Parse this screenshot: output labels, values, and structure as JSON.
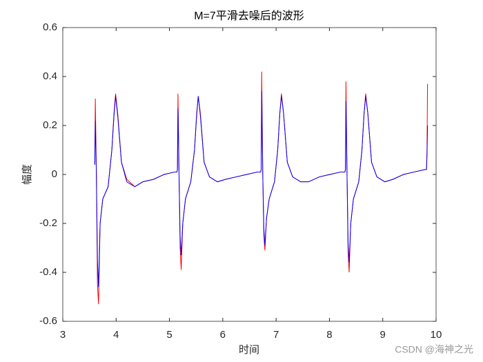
{
  "chart_data": {
    "type": "line",
    "title": "M=7平滑去噪后的波形",
    "x_label": "时间",
    "y_label": "幅度",
    "x": [
      3.6,
      3.61,
      3.63,
      3.65,
      3.67,
      3.7,
      3.75,
      3.85,
      3.92,
      3.96,
      3.99,
      4.03,
      4.1,
      4.2,
      4.35,
      4.5,
      4.7,
      4.9,
      5.1,
      5.14,
      5.15,
      5.16,
      5.18,
      5.2,
      5.22,
      5.25,
      5.3,
      5.4,
      5.47,
      5.51,
      5.54,
      5.58,
      5.65,
      5.75,
      5.9,
      6.05,
      6.25,
      6.45,
      6.65,
      6.71,
      6.72,
      6.73,
      6.75,
      6.77,
      6.79,
      6.82,
      6.87,
      6.97,
      7.03,
      7.07,
      7.1,
      7.14,
      7.21,
      7.31,
      7.46,
      7.61,
      7.81,
      8.01,
      8.21,
      8.29,
      8.3,
      8.31,
      8.33,
      8.35,
      8.37,
      8.4,
      8.45,
      8.55,
      8.61,
      8.65,
      8.68,
      8.72,
      8.79,
      8.89,
      9.04,
      9.19,
      9.39,
      9.59,
      9.79,
      9.82,
      9.83,
      9.84
    ],
    "series": [
      {
        "color": "#ff0000",
        "values": [
          0.04,
          0.31,
          0.0,
          -0.45,
          -0.53,
          -0.2,
          -0.1,
          -0.05,
          0.1,
          0.25,
          0.33,
          0.25,
          0.05,
          -0.02,
          -0.05,
          -0.03,
          -0.02,
          0,
          0.01,
          0.01,
          0.02,
          0.33,
          0.0,
          -0.3,
          -0.39,
          -0.2,
          -0.1,
          -0.03,
          0.1,
          0.25,
          0.32,
          0.25,
          0.05,
          -0.01,
          -0.03,
          -0.02,
          -0.01,
          0,
          0.01,
          0.01,
          0.02,
          0.42,
          0.0,
          -0.25,
          -0.31,
          -0.18,
          -0.1,
          -0.03,
          0.1,
          0.25,
          0.33,
          0.25,
          0.05,
          -0.01,
          -0.03,
          -0.03,
          -0.01,
          0,
          0.01,
          0.01,
          0.02,
          0.38,
          0.0,
          -0.32,
          -0.4,
          -0.2,
          -0.1,
          -0.03,
          0.1,
          0.25,
          0.33,
          0.25,
          0.05,
          -0.01,
          -0.03,
          -0.02,
          0,
          0.01,
          0.02,
          0.02,
          0.1,
          0.37
        ]
      },
      {
        "color": "#0000ff",
        "values": [
          0.04,
          0.22,
          0.0,
          -0.35,
          -0.46,
          -0.2,
          -0.1,
          -0.05,
          0.1,
          0.24,
          0.32,
          0.24,
          0.05,
          -0.03,
          -0.05,
          -0.03,
          -0.02,
          0,
          0.01,
          0.01,
          0.02,
          0.27,
          0.0,
          -0.25,
          -0.33,
          -0.2,
          -0.1,
          -0.03,
          0.1,
          0.24,
          0.32,
          0.24,
          0.05,
          -0.01,
          -0.03,
          -0.02,
          -0.01,
          0,
          0.01,
          0.01,
          0.02,
          0.34,
          0.0,
          -0.22,
          -0.29,
          -0.18,
          -0.1,
          -0.03,
          0.1,
          0.25,
          0.32,
          0.25,
          0.05,
          -0.01,
          -0.03,
          -0.03,
          -0.01,
          0,
          0.01,
          0.01,
          0.02,
          0.3,
          0.0,
          -0.28,
          -0.36,
          -0.2,
          -0.1,
          -0.03,
          0.1,
          0.25,
          0.32,
          0.25,
          0.05,
          -0.01,
          -0.03,
          -0.02,
          0,
          0.01,
          0.02,
          0.02,
          0.08,
          0.2
        ]
      }
    ],
    "xlim": [
      3,
      10
    ],
    "ylim": [
      -0.6,
      0.6
    ],
    "xticks": [
      3,
      4,
      5,
      6,
      7,
      8,
      9,
      10
    ],
    "yticks": [
      -0.6,
      -0.4,
      -0.2,
      0,
      0.2,
      0.4,
      0.6
    ],
    "grid": false
  },
  "watermark": "CSDN @海神之光"
}
